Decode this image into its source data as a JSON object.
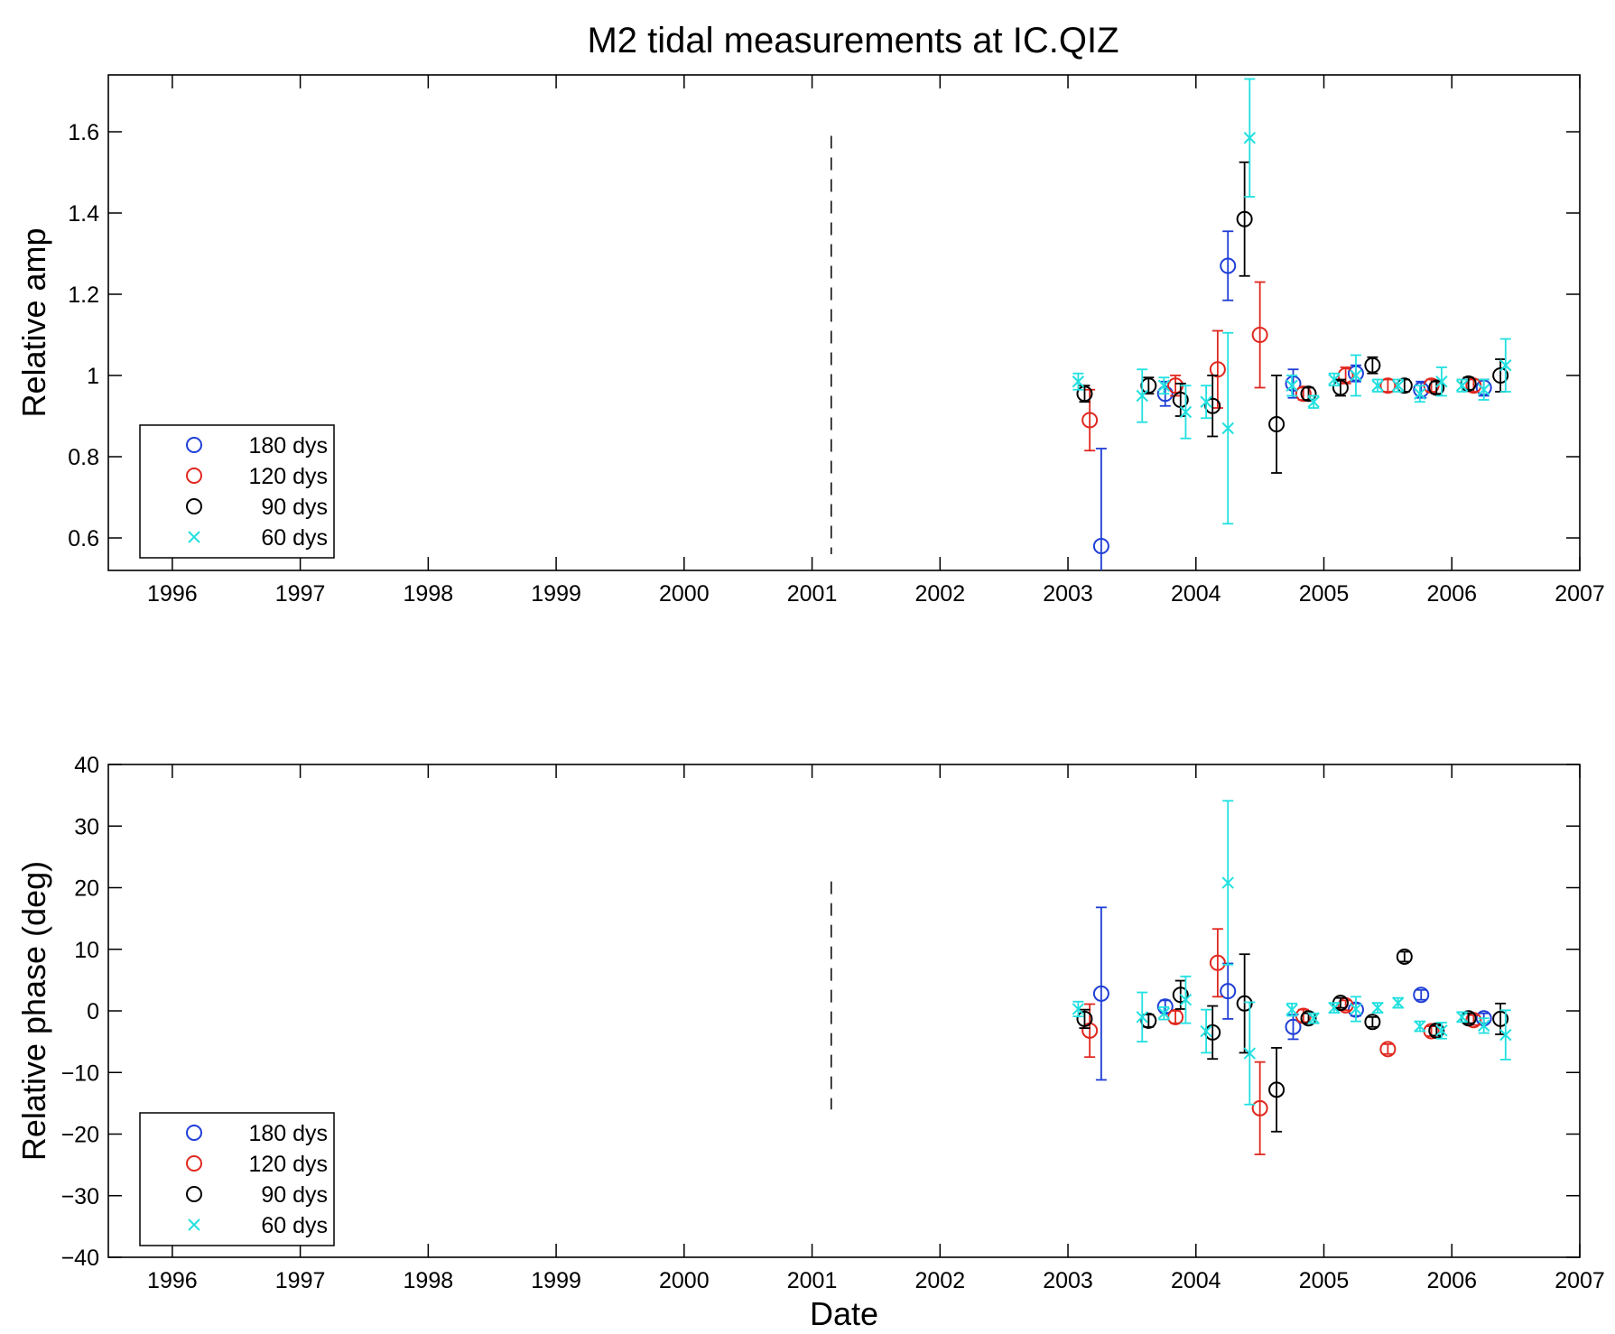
{
  "figure_title": "M2 tidal measurements at IC.QIZ",
  "chart_data": [
    {
      "type": "scatter",
      "title": "M2 tidal measurements at IC.QIZ",
      "xlabel": "",
      "ylabel": "Relative amp",
      "x_ticks": [
        "1996",
        "1997",
        "1998",
        "1999",
        "2000",
        "2001",
        "2002",
        "2003",
        "2004",
        "2005",
        "2006",
        "2007"
      ],
      "y_ticks": [
        "0.6",
        "0.8",
        "1",
        "1.2",
        "1.4",
        "1.6"
      ],
      "xlim": [
        1995.5,
        2007
      ],
      "ylim": [
        0.52,
        1.74
      ],
      "grid": false,
      "legend_position": "bottom-left",
      "vline": {
        "x": 2001.15,
        "y_range": [
          0.56,
          1.59
        ],
        "style": "dashed"
      },
      "series": [
        {
          "name": "180 dys",
          "marker": "circle",
          "color": "#1f3fd6",
          "points": [
            [
              2003.26,
              0.58,
              0.24
            ],
            [
              2003.76,
              0.955,
              0.03
            ],
            [
              2004.25,
              1.27,
              0.085
            ],
            [
              2004.76,
              0.98,
              0.035
            ],
            [
              2005.25,
              1.005,
              0.02
            ],
            [
              2005.76,
              0.965,
              0.02
            ],
            [
              2006.25,
              0.97,
              0.02
            ]
          ]
        },
        {
          "name": "120 dys",
          "marker": "circle",
          "color": "#e0281f",
          "points": [
            [
              2003.17,
              0.89,
              0.075
            ],
            [
              2003.84,
              0.975,
              0.025
            ],
            [
              2004.17,
              1.015,
              0.095
            ],
            [
              2004.5,
              1.1,
              0.13
            ],
            [
              2004.84,
              0.955,
              0.015
            ],
            [
              2005.17,
              1.0,
              0.02
            ],
            [
              2005.5,
              0.975,
              0.015
            ],
            [
              2005.84,
              0.975,
              0.015
            ],
            [
              2006.17,
              0.975,
              0.015
            ]
          ]
        },
        {
          "name": "90 dys",
          "marker": "circle",
          "color": "#000000",
          "points": [
            [
              2003.13,
              0.955,
              0.02
            ],
            [
              2003.63,
              0.975,
              0.02
            ],
            [
              2003.88,
              0.94,
              0.04
            ],
            [
              2004.13,
              0.925,
              0.075
            ],
            [
              2004.38,
              1.385,
              0.14
            ],
            [
              2004.63,
              0.88,
              0.12
            ],
            [
              2004.88,
              0.955,
              0.015
            ],
            [
              2005.13,
              0.97,
              0.02
            ],
            [
              2005.38,
              1.025,
              0.02
            ],
            [
              2005.63,
              0.975,
              0.015
            ],
            [
              2005.88,
              0.97,
              0.015
            ],
            [
              2006.13,
              0.98,
              0.015
            ],
            [
              2006.38,
              1.0,
              0.04
            ]
          ]
        },
        {
          "name": "60 dys",
          "marker": "x",
          "color": "#22e0e0",
          "points": [
            [
              2003.08,
              0.985,
              0.02
            ],
            [
              2003.58,
              0.95,
              0.065
            ],
            [
              2003.75,
              0.975,
              0.02
            ],
            [
              2003.92,
              0.91,
              0.065
            ],
            [
              2004.08,
              0.935,
              0.04
            ],
            [
              2004.25,
              0.87,
              0.235
            ],
            [
              2004.42,
              1.585,
              0.145
            ],
            [
              2004.75,
              0.975,
              0.025
            ],
            [
              2004.92,
              0.935,
              0.015
            ],
            [
              2005.08,
              0.99,
              0.015
            ],
            [
              2005.25,
              1.0,
              0.05
            ],
            [
              2005.42,
              0.975,
              0.015
            ],
            [
              2005.58,
              0.975,
              0.015
            ],
            [
              2005.75,
              0.955,
              0.02
            ],
            [
              2005.92,
              0.985,
              0.035
            ],
            [
              2006.08,
              0.975,
              0.015
            ],
            [
              2006.25,
              0.965,
              0.025
            ],
            [
              2006.42,
              1.025,
              0.065
            ]
          ]
        }
      ]
    },
    {
      "type": "scatter",
      "title": "",
      "xlabel": "Date",
      "ylabel": "Relative phase (deg)",
      "x_ticks": [
        "1996",
        "1997",
        "1998",
        "1999",
        "2000",
        "2001",
        "2002",
        "2003",
        "2004",
        "2005",
        "2006",
        "2007"
      ],
      "y_ticks": [
        "−40",
        "−30",
        "−20",
        "−10",
        "0",
        "10",
        "20",
        "30",
        "40"
      ],
      "xlim": [
        1995.5,
        2007
      ],
      "ylim": [
        -40,
        40
      ],
      "grid": false,
      "legend_position": "bottom-left",
      "vline": {
        "x": 2001.15,
        "y_range": [
          -16,
          21
        ],
        "style": "dashed"
      },
      "series": [
        {
          "name": "180 dys",
          "marker": "circle",
          "color": "#1f3fd6",
          "points": [
            [
              2003.26,
              2.8,
              14
            ],
            [
              2003.76,
              0.7,
              1
            ],
            [
              2004.25,
              3.2,
              4.5
            ],
            [
              2004.76,
              -2.6,
              2
            ],
            [
              2005.25,
              0.2,
              1
            ],
            [
              2005.76,
              2.6,
              0.8
            ],
            [
              2006.25,
              -1.2,
              0.8
            ]
          ]
        },
        {
          "name": "120 dys",
          "marker": "circle",
          "color": "#e0281f",
          "points": [
            [
              2003.17,
              -3.2,
              4.3
            ],
            [
              2003.84,
              -1.0,
              1
            ],
            [
              2004.17,
              7.8,
              5.5
            ],
            [
              2004.5,
              -15.8,
              7.5
            ],
            [
              2004.84,
              -0.8,
              1
            ],
            [
              2005.17,
              0.9,
              0.8
            ],
            [
              2005.5,
              -6.2,
              0.8
            ],
            [
              2005.84,
              -3.3,
              0.8
            ],
            [
              2006.17,
              -1.5,
              0.8
            ]
          ]
        },
        {
          "name": "90 dys",
          "marker": "circle",
          "color": "#000000",
          "points": [
            [
              2003.13,
              -1.3,
              1.5
            ],
            [
              2003.63,
              -1.6,
              1
            ],
            [
              2003.88,
              2.6,
              2.3
            ],
            [
              2004.13,
              -3.5,
              4.3
            ],
            [
              2004.38,
              1.2,
              8
            ],
            [
              2004.63,
              -12.8,
              6.8
            ],
            [
              2004.88,
              -1.2,
              0.8
            ],
            [
              2005.13,
              1.3,
              0.8
            ],
            [
              2005.38,
              -1.8,
              0.8
            ],
            [
              2005.63,
              8.8,
              0.8
            ],
            [
              2005.88,
              -3.2,
              0.8
            ],
            [
              2006.13,
              -1.2,
              0.8
            ],
            [
              2006.38,
              -1.3,
              2.5
            ]
          ]
        },
        {
          "name": "60 dys",
          "marker": "x",
          "color": "#22e0e0",
          "points": [
            [
              2003.08,
              0.3,
              1.2
            ],
            [
              2003.58,
              -1.0,
              4
            ],
            [
              2003.75,
              -0.4,
              1
            ],
            [
              2003.92,
              1.8,
              3.8
            ],
            [
              2004.08,
              -3.3,
              3.5
            ],
            [
              2004.25,
              20.8,
              13.3
            ],
            [
              2004.42,
              -6.9,
              8.3
            ],
            [
              2004.75,
              0.2,
              1
            ],
            [
              2004.92,
              -1.2,
              0.8
            ],
            [
              2005.08,
              0.5,
              0.8
            ],
            [
              2005.25,
              0.3,
              2
            ],
            [
              2005.42,
              0.5,
              0.8
            ],
            [
              2005.58,
              1.3,
              0.8
            ],
            [
              2005.75,
              -2.5,
              0.8
            ],
            [
              2005.92,
              -3.2,
              1.3
            ],
            [
              2006.08,
              -1.0,
              0.8
            ],
            [
              2006.25,
              -2.4,
              1.2
            ],
            [
              2006.42,
              -3.9,
              4
            ]
          ]
        }
      ]
    }
  ]
}
